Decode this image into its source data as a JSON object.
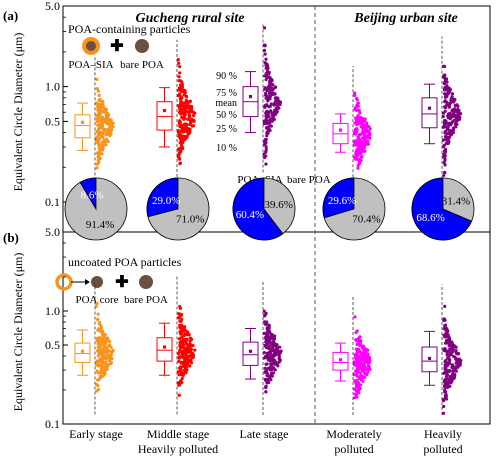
{
  "site_titles": [
    "Gucheng rural site",
    "Beijing urban site"
  ],
  "panel_labels": [
    "(a)",
    "(b)"
  ],
  "y_axis_label": "Equivalent Circle Diameter (μm)",
  "y_ticks": [
    "5.0",
    "1.0",
    "0.5",
    "0.1"
  ],
  "stage_labels": [
    [
      "Early stage"
    ],
    [
      "Middle stage",
      "Heavily polluted"
    ],
    [
      "Late stage"
    ],
    [
      "Moderately",
      "polluted"
    ],
    [
      "Heavily",
      "polluted"
    ]
  ],
  "series_colors": [
    "#f7941d",
    "#ff0000",
    "#800080",
    "#ff00ff",
    "#800080"
  ],
  "pie_colors": {
    "poa_sia": "#0000ff",
    "bare_poa": "#c0c0c0"
  },
  "legend_a": {
    "title": "POA-containing particles",
    "left": "POA–SIA",
    "right": "bare POA"
  },
  "legend_b": {
    "title": "uncoated POA particles",
    "left": "POA core",
    "right": "bare POA"
  },
  "pie_legend": {
    "left": "POA–SIA",
    "right": "bare POA"
  },
  "box_legend": [
    "90 %",
    "75 %",
    "mean",
    "50 %",
    "25 %",
    "10 %"
  ],
  "chart_data": [
    {
      "type": "box",
      "panel": "(a)",
      "yscale": "log",
      "ylim": [
        0.1,
        5.0
      ],
      "categories": [
        "Early stage",
        "Middle stage Heavily polluted",
        "Late stage",
        "Moderately polluted",
        "Heavily polluted"
      ],
      "stats": [
        {
          "p10": 0.28,
          "p25": 0.36,
          "p50": 0.46,
          "p75": 0.57,
          "p90": 0.72,
          "mean": 0.49
        },
        {
          "p10": 0.3,
          "p25": 0.42,
          "p50": 0.55,
          "p75": 0.74,
          "p90": 0.98,
          "mean": 0.62
        },
        {
          "p10": 0.4,
          "p25": 0.55,
          "p50": 0.74,
          "p75": 1.0,
          "p90": 1.35,
          "mean": 0.82
        },
        {
          "p10": 0.27,
          "p25": 0.32,
          "p50": 0.39,
          "p75": 0.48,
          "p90": 0.58,
          "mean": 0.42
        },
        {
          "p10": 0.32,
          "p25": 0.44,
          "p50": 0.58,
          "p75": 0.8,
          "p90": 1.05,
          "mean": 0.65
        }
      ]
    },
    {
      "type": "pie",
      "panel": "(a)",
      "categories": [
        "Early stage",
        "Middle stage Heavily polluted",
        "Late stage",
        "Moderately polluted",
        "Heavily polluted"
      ],
      "series": [
        {
          "name": "POA–SIA",
          "values": [
            8.6,
            29.0,
            60.4,
            29.6,
            68.6
          ]
        },
        {
          "name": "bare POA",
          "values": [
            91.4,
            71.0,
            39.6,
            70.4,
            31.4
          ]
        }
      ],
      "labels": [
        [
          "8.6%",
          "91.4%"
        ],
        [
          "29.0%",
          "71.0%"
        ],
        [
          "60.4%",
          "39.6%"
        ],
        [
          "29.6%",
          "70.4%"
        ],
        [
          "68.6%",
          "31.4%"
        ]
      ]
    },
    {
      "type": "box",
      "panel": "(b)",
      "yscale": "log",
      "ylim": [
        0.1,
        5.0
      ],
      "categories": [
        "Early stage",
        "Middle stage Heavily polluted",
        "Late stage",
        "Moderately polluted",
        "Heavily polluted"
      ],
      "stats": [
        {
          "p10": 0.27,
          "p25": 0.35,
          "p50": 0.42,
          "p75": 0.52,
          "p90": 0.68,
          "mean": 0.44
        },
        {
          "p10": 0.27,
          "p25": 0.36,
          "p50": 0.45,
          "p75": 0.58,
          "p90": 0.78,
          "mean": 0.48
        },
        {
          "p10": 0.25,
          "p25": 0.33,
          "p50": 0.41,
          "p75": 0.53,
          "p90": 0.7,
          "mean": 0.44
        },
        {
          "p10": 0.24,
          "p25": 0.3,
          "p50": 0.35,
          "p75": 0.43,
          "p90": 0.52,
          "mean": 0.37
        },
        {
          "p10": 0.22,
          "p25": 0.29,
          "p50": 0.36,
          "p75": 0.48,
          "p90": 0.66,
          "mean": 0.38
        }
      ]
    }
  ]
}
